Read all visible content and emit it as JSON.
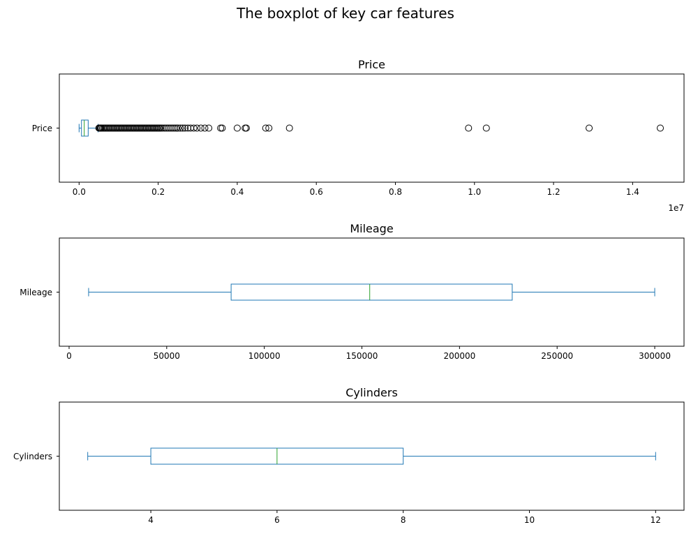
{
  "figure_title": "The boxplot of key car features",
  "colors": {
    "box": "#1f77b4",
    "median": "#2ca02c",
    "outlier": "#000000",
    "axes": "#000000"
  },
  "chart_data": [
    {
      "type": "boxplot",
      "orientation": "horizontal",
      "title": "Price",
      "category": "Price",
      "xlim": [
        -500000,
        15300000
      ],
      "x_ticks": [
        0,
        0.2,
        0.4,
        0.6,
        0.8,
        1.0,
        1.2,
        1.4
      ],
      "x_tick_labels": [
        "0.0",
        "0.2",
        "0.4",
        "0.6",
        "0.8",
        "1.0",
        "1.2",
        "1.4"
      ],
      "x_offset_label": "1e7",
      "box": {
        "whisker_low": 0,
        "q1": 60000,
        "median": 130000,
        "q3": 230000,
        "whisker_high": 480000
      },
      "outliers": [
        500000,
        520000,
        540000,
        560000,
        590000,
        620000,
        650000,
        680000,
        710000,
        740000,
        770000,
        800000,
        830000,
        860000,
        890000,
        920000,
        950000,
        980000,
        1010000,
        1040000,
        1070000,
        1100000,
        1130000,
        1160000,
        1190000,
        1220000,
        1250000,
        1280000,
        1310000,
        1340000,
        1370000,
        1400000,
        1430000,
        1460000,
        1490000,
        1520000,
        1550000,
        1580000,
        1610000,
        1640000,
        1670000,
        1700000,
        1730000,
        1760000,
        1790000,
        1820000,
        1850000,
        1880000,
        1910000,
        1940000,
        1970000,
        2000000,
        2030000,
        2060000,
        2100000,
        2150000,
        2200000,
        2250000,
        2300000,
        2350000,
        2400000,
        2450000,
        2500000,
        2560000,
        2620000,
        2680000,
        2750000,
        2820000,
        2900000,
        2980000,
        3080000,
        3180000,
        3280000,
        3580000,
        3620000,
        4000000,
        4200000,
        4230000,
        4720000,
        4800000,
        5320000,
        9850000,
        10300000,
        12900000,
        14700000
      ]
    },
    {
      "type": "boxplot",
      "orientation": "horizontal",
      "title": "Mileage",
      "category": "Mileage",
      "xlim": [
        -5000,
        315000
      ],
      "x_ticks": [
        0,
        50000,
        100000,
        150000,
        200000,
        250000,
        300000
      ],
      "x_tick_labels": [
        "0",
        "50000",
        "100000",
        "150000",
        "200000",
        "250000",
        "300000"
      ],
      "box": {
        "whisker_low": 10000,
        "q1": 83000,
        "median": 154000,
        "q3": 227000,
        "whisker_high": 300000
      },
      "outliers": []
    },
    {
      "type": "boxplot",
      "orientation": "horizontal",
      "title": "Cylinders",
      "category": "Cylinders",
      "xlim": [
        2.55,
        12.45
      ],
      "x_ticks": [
        4,
        6,
        8,
        10,
        12
      ],
      "x_tick_labels": [
        "4",
        "6",
        "8",
        "10",
        "12"
      ],
      "box": {
        "whisker_low": 3,
        "q1": 4,
        "median": 6,
        "q3": 8,
        "whisker_high": 12
      },
      "outliers": []
    }
  ]
}
